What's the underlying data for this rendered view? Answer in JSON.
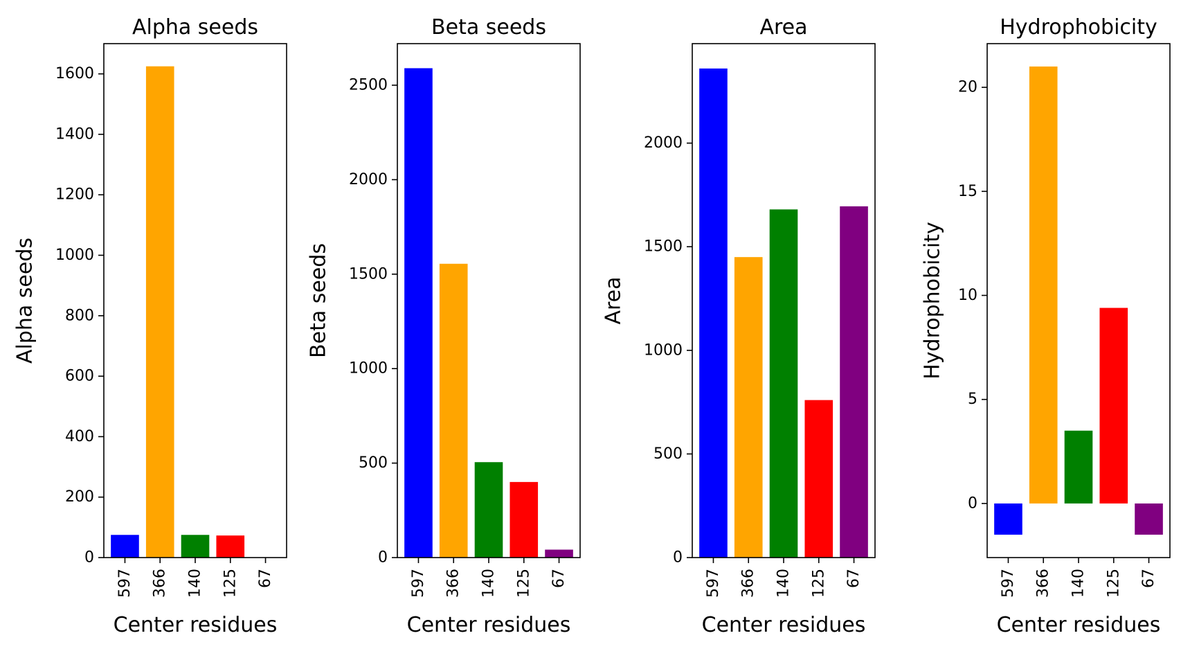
{
  "chart_data": [
    {
      "type": "bar",
      "title": "Alpha seeds",
      "xlabel": "Center residues",
      "ylabel": "Alpha seeds",
      "categories": [
        "597",
        "366",
        "140",
        "125",
        "67"
      ],
      "values": [
        75,
        1625,
        75,
        73,
        0
      ],
      "colors": [
        "#0000ff",
        "#ffa500",
        "#008000",
        "#ff0000",
        "#800080"
      ],
      "ylim": [
        0,
        1700
      ],
      "yticks": [
        0,
        200,
        400,
        600,
        800,
        1000,
        1200,
        1400,
        1600
      ],
      "grid": false
    },
    {
      "type": "bar",
      "title": "Beta seeds",
      "xlabel": "Center residues",
      "ylabel": "Beta seeds",
      "categories": [
        "597",
        "366",
        "140",
        "125",
        "67"
      ],
      "values": [
        2590,
        1555,
        505,
        400,
        42
      ],
      "colors": [
        "#0000ff",
        "#ffa500",
        "#008000",
        "#ff0000",
        "#800080"
      ],
      "ylim": [
        0,
        2720
      ],
      "yticks": [
        0,
        500,
        1000,
        1500,
        2000,
        2500
      ],
      "grid": false
    },
    {
      "type": "bar",
      "title": "Area",
      "xlabel": "Center residues",
      "ylabel": "Area",
      "categories": [
        "597",
        "366",
        "140",
        "125",
        "67"
      ],
      "values": [
        2360,
        1450,
        1680,
        760,
        1695
      ],
      "colors": [
        "#0000ff",
        "#ffa500",
        "#008000",
        "#ff0000",
        "#800080"
      ],
      "ylim": [
        0,
        2480
      ],
      "yticks": [
        0,
        500,
        1000,
        1500,
        2000
      ],
      "grid": false
    },
    {
      "type": "bar",
      "title": "Hydrophobicity",
      "xlabel": "Center residues",
      "ylabel": "Hydrophobicity",
      "categories": [
        "597",
        "366",
        "140",
        "125",
        "67"
      ],
      "values": [
        -1.5,
        21.0,
        3.5,
        9.4,
        -1.5
      ],
      "colors": [
        "#0000ff",
        "#ffa500",
        "#008000",
        "#ff0000",
        "#800080"
      ],
      "ylim": [
        -2.6,
        22.1
      ],
      "yticks": [
        0,
        5,
        10,
        15,
        20
      ],
      "grid": false
    }
  ]
}
